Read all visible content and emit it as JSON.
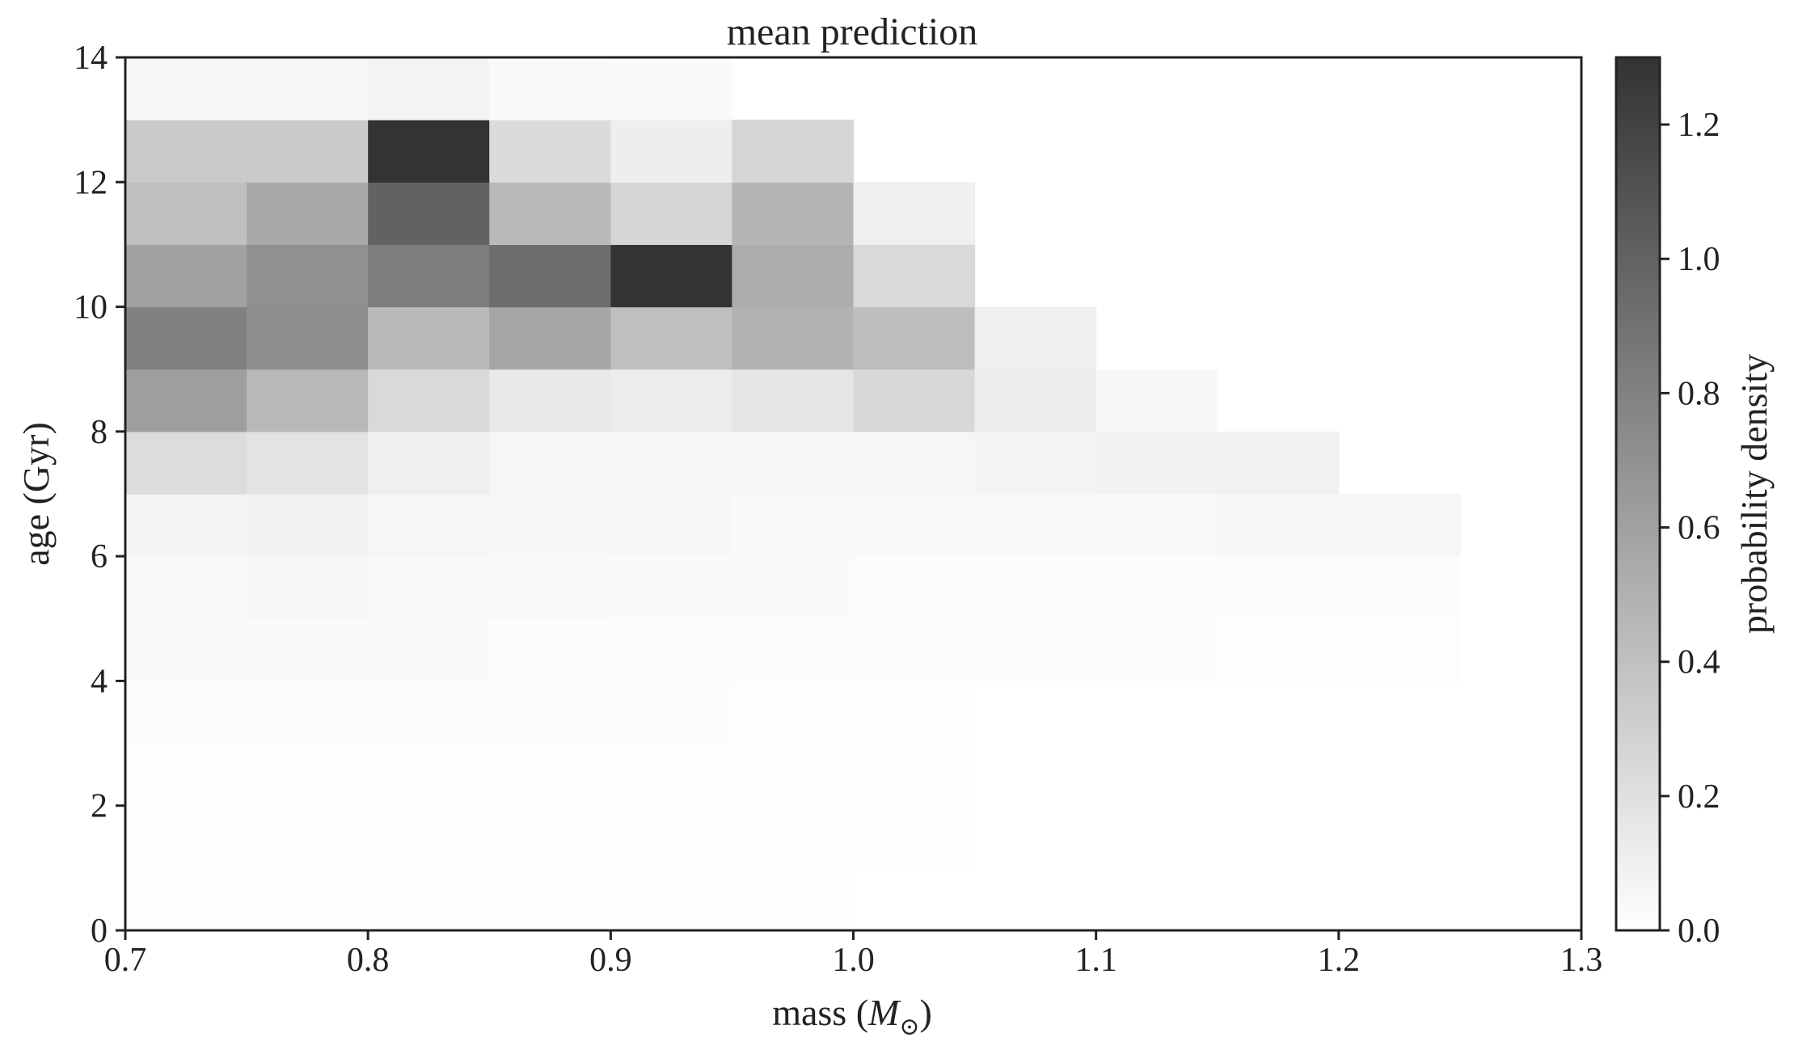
{
  "chart_data": {
    "type": "heatmap",
    "title": "mean prediction",
    "xlabel": "mass (M⊙)",
    "ylabel": "age (Gyr)",
    "colorbar_label": "probability density",
    "xlim": [
      0.7,
      1.3
    ],
    "ylim": [
      0,
      14
    ],
    "clim": [
      0,
      1.3
    ],
    "xticks": [
      "0.7",
      "0.8",
      "0.9",
      "1.0",
      "1.1",
      "1.2",
      "1.3"
    ],
    "yticks": [
      "0",
      "2",
      "4",
      "6",
      "8",
      "10",
      "12",
      "14"
    ],
    "cbar_ticks": [
      "0.0",
      "0.2",
      "0.4",
      "0.6",
      "0.8",
      "1.0",
      "1.2"
    ],
    "colormap": [
      "#ffffff",
      "#333333"
    ],
    "x_edges": [
      0.7,
      0.75,
      0.8,
      0.85,
      0.9,
      0.95,
      1.0,
      1.05,
      1.1,
      1.15,
      1.2,
      1.25
    ],
    "y_edges": [
      0,
      1,
      2,
      3,
      4,
      5,
      6,
      7,
      8,
      9,
      10,
      11,
      12,
      13,
      14
    ],
    "z_rows_from_bottom": [
      [
        0.01,
        0.01,
        0.01,
        0.01,
        0.01,
        0.01,
        0.0,
        0.0,
        0.0,
        0.0,
        0.0
      ],
      [
        0.01,
        0.01,
        0.01,
        0.01,
        0.01,
        0.01,
        0.01,
        0.0,
        0.0,
        0.0,
        0.0
      ],
      [
        0.01,
        0.01,
        0.01,
        0.01,
        0.01,
        0.01,
        0.01,
        0.0,
        0.0,
        0.0,
        0.0
      ],
      [
        0.02,
        0.02,
        0.02,
        0.02,
        0.02,
        0.01,
        0.01,
        0.0,
        0.0,
        0.0,
        0.0
      ],
      [
        0.03,
        0.03,
        0.03,
        0.02,
        0.02,
        0.02,
        0.02,
        0.02,
        0.02,
        0.01,
        0.01
      ],
      [
        0.04,
        0.05,
        0.04,
        0.04,
        0.03,
        0.03,
        0.02,
        0.02,
        0.02,
        0.02,
        0.02
      ],
      [
        0.07,
        0.08,
        0.06,
        0.05,
        0.05,
        0.04,
        0.04,
        0.04,
        0.04,
        0.05,
        0.06
      ],
      [
        0.22,
        0.18,
        0.1,
        0.06,
        0.05,
        0.05,
        0.06,
        0.07,
        0.08,
        0.09,
        0.0
      ],
      [
        0.62,
        0.45,
        0.24,
        0.14,
        0.12,
        0.16,
        0.25,
        0.12,
        0.05,
        0.0,
        0.0
      ],
      [
        0.8,
        0.72,
        0.44,
        0.57,
        0.41,
        0.49,
        0.42,
        0.1,
        0.0,
        0.0,
        0.0
      ],
      [
        0.6,
        0.71,
        0.82,
        0.93,
        1.3,
        0.52,
        0.24,
        0.0,
        0.0,
        0.0,
        0.0
      ],
      [
        0.4,
        0.55,
        1.0,
        0.44,
        0.26,
        0.47,
        0.1,
        0.0,
        0.0,
        0.0,
        0.0
      ],
      [
        0.34,
        0.34,
        1.3,
        0.23,
        0.11,
        0.27,
        0.0,
        0.0,
        0.0,
        0.0,
        0.0
      ],
      [
        0.05,
        0.05,
        0.07,
        0.04,
        0.03,
        0.0,
        0.0,
        0.0,
        0.0,
        0.0,
        0.0
      ]
    ]
  }
}
